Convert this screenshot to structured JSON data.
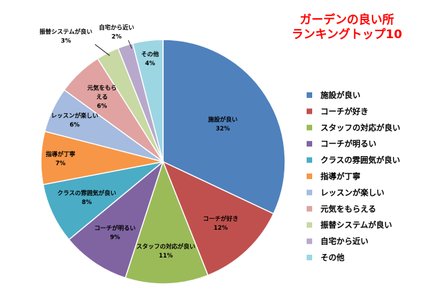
{
  "chart_data": {
    "type": "pie",
    "title_lines": [
      "ガーデンの良い所",
      "ランキングトップ10"
    ],
    "categories": [
      "施設が良い",
      "コーチが好き",
      "スタッフの対応が良い",
      "コーチが明るい",
      "クラスの雰囲気が良い",
      "指導が丁寧",
      "レッスンが楽しい",
      "元気をもらえる",
      "振替システムが良い",
      "自宅から近い",
      "その他"
    ],
    "values": [
      32,
      12,
      11,
      9,
      8,
      7,
      6,
      6,
      3,
      2,
      4
    ],
    "percent_labels": [
      "32%",
      "12%",
      "11%",
      "9%",
      "8%",
      "7%",
      "6%",
      "6%",
      "3%",
      "2%",
      "4%"
    ],
    "slice_label_lines": [
      [
        "施設が良い"
      ],
      [
        "コーチが好き"
      ],
      [
        "スタッフの対応が良い"
      ],
      [
        "コーチが明るい"
      ],
      [
        "クラスの雰囲気が良い"
      ],
      [
        "指導が丁寧"
      ],
      [
        "レッスンが楽しい"
      ],
      [
        "元気をもら",
        "える"
      ],
      [
        "振替システムが良い"
      ],
      [
        "自宅から近い"
      ],
      [
        "その他"
      ]
    ],
    "colors": [
      "#4f81bd",
      "#c0504d",
      "#9bbb59",
      "#8064a2",
      "#4bacc6",
      "#f79646",
      "#a5bbdf",
      "#e0a3a1",
      "#c8d9a4",
      "#b8a9cc",
      "#9dd6e3"
    ],
    "legend_position": "right",
    "start_angle": "12 o'clock, clockwise"
  }
}
